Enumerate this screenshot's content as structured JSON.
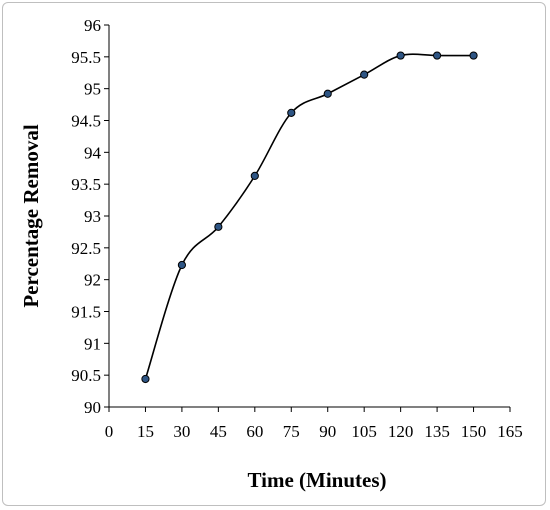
{
  "chart_data": {
    "type": "line",
    "smooth": true,
    "title": "",
    "xlabel": "Time (Minutes)",
    "ylabel": "Percentage Removal",
    "xlim": [
      0,
      165
    ],
    "ylim": [
      90,
      96
    ],
    "x_ticks": [
      "0",
      "15",
      "30",
      "45",
      "60",
      "75",
      "90",
      "105",
      "120",
      "135",
      "150",
      "165"
    ],
    "y_ticks": [
      "90",
      "90.5",
      "91",
      "91.5",
      "92",
      "92.5",
      "93",
      "93.5",
      "94",
      "94.5",
      "95",
      "95.5",
      "96"
    ],
    "x_tick_values": [
      0,
      15,
      30,
      45,
      60,
      75,
      90,
      105,
      120,
      135,
      150,
      165
    ],
    "y_tick_values": [
      90,
      90.5,
      91,
      91.5,
      92,
      92.5,
      93,
      93.5,
      94,
      94.5,
      95,
      95.5,
      96
    ],
    "grid": false,
    "legend": "none",
    "series": [
      {
        "x": [
          15,
          30,
          45,
          60,
          75,
          90,
          105,
          120,
          135,
          150
        ],
        "y": [
          90.44,
          92.23,
          92.83,
          93.63,
          94.62,
          94.92,
          95.22,
          95.52,
          95.52,
          95.52
        ],
        "line_color": "#000000",
        "marker_color": "#2e5584",
        "marker_edge_color": "#000000"
      }
    ]
  }
}
